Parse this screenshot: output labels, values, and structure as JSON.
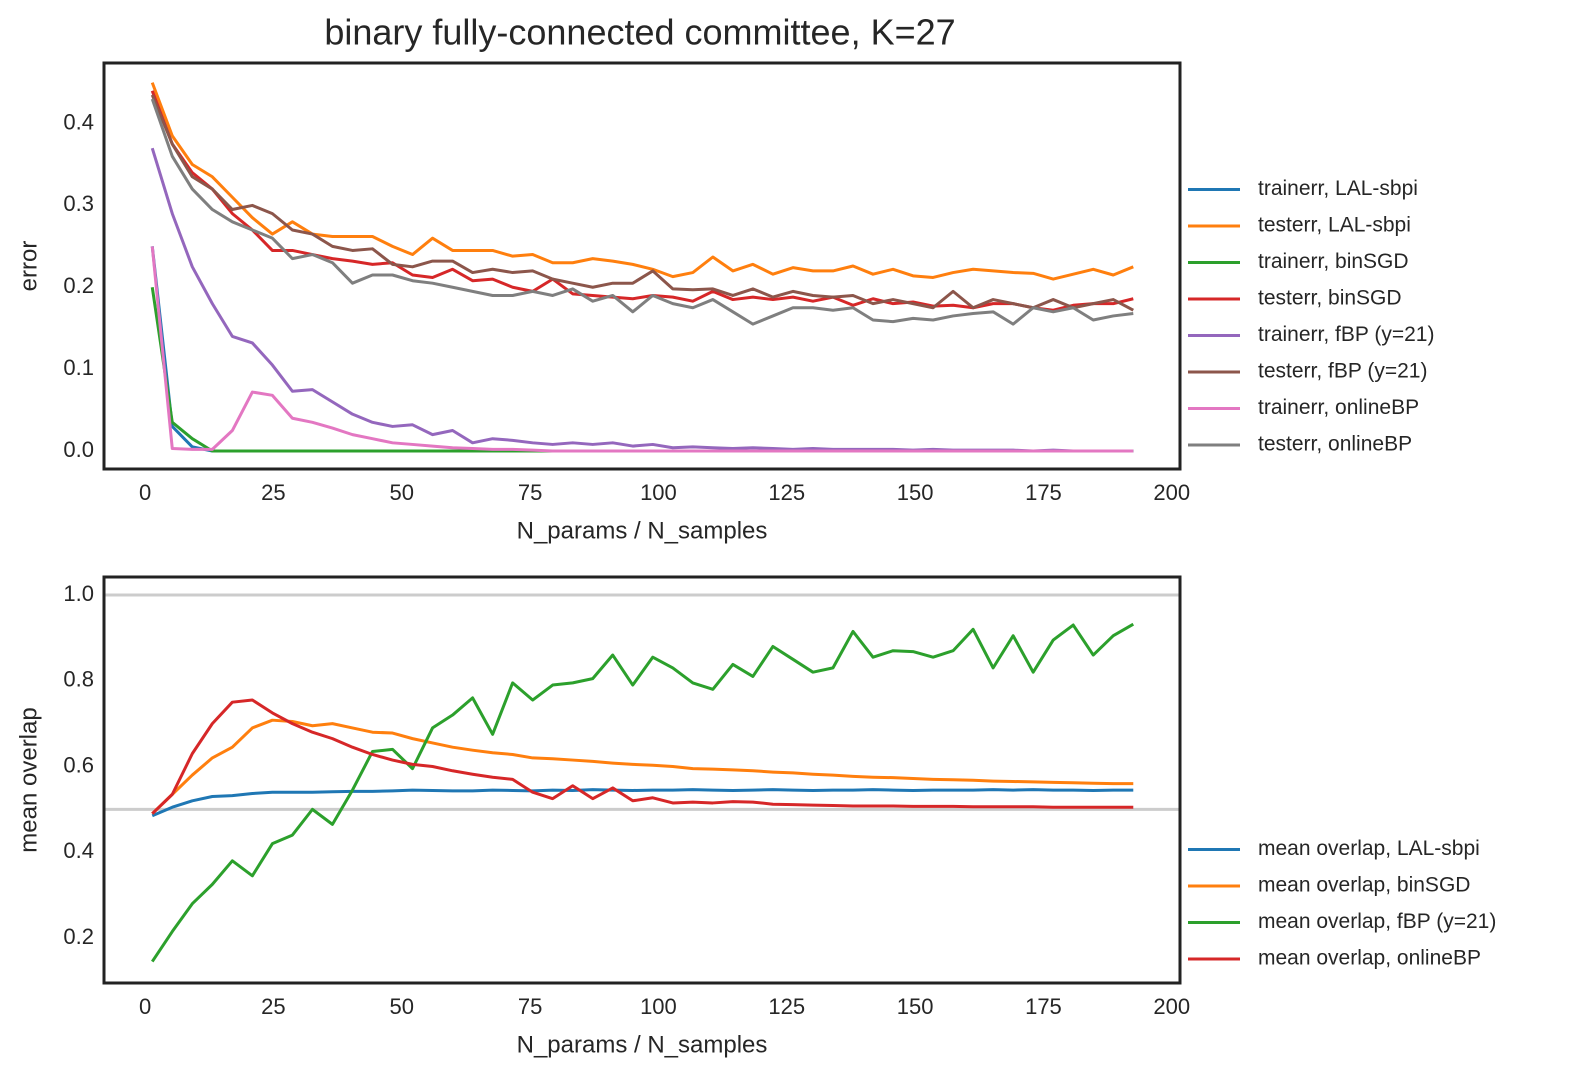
{
  "chart_data": [
    {
      "type": "line",
      "title": "binary fully-connected committee, K=27",
      "xlabel": "N_params / N_samples",
      "ylabel": "error",
      "xlim": [
        -8,
        201.6
      ],
      "ylim": [
        -0.022,
        0.474
      ],
      "xticks": [
        0,
        25,
        50,
        75,
        100,
        125,
        150,
        175,
        200
      ],
      "yticks": [
        {
          "value": 0,
          "label": "0.0"
        },
        0.1,
        0.2,
        0.3,
        0.4
      ],
      "legend": "lower right",
      "x": [
        1.4,
        5.3,
        9.2,
        13.1,
        17.0,
        20.9,
        24.8,
        28.7,
        32.6,
        36.5,
        40.4,
        44.3,
        48.2,
        52.1,
        56.0,
        59.9,
        63.8,
        67.7,
        71.6,
        75.5,
        79.4,
        83.3,
        87.2,
        91.1,
        95.0,
        98.9,
        102.8,
        106.7,
        110.6,
        114.5,
        118.4,
        122.3,
        126.2,
        130.1,
        134.0,
        137.9,
        141.8,
        145.7,
        149.6,
        153.5,
        157.4,
        161.3,
        165.2,
        169.1,
        173.0,
        176.9,
        180.8,
        184.7,
        188.6,
        192.5
      ],
      "series": [
        {
          "name": "trainerr, LAL-sbpi",
          "color": "#1f77b4",
          "values": [
            0.25,
            0.03,
            0.005,
            0,
            0,
            0,
            0,
            0,
            0,
            0,
            0,
            0,
            0,
            0,
            0,
            0,
            0,
            0,
            0,
            0,
            0,
            0,
            0,
            0,
            0,
            0,
            0,
            0,
            0,
            0,
            0,
            0,
            0,
            0,
            0,
            0,
            0,
            0,
            0,
            0,
            0,
            0,
            0,
            0,
            0,
            0,
            0,
            0,
            0,
            0
          ]
        },
        {
          "name": "testerr, LAL-sbpi",
          "color": "#ff7f0e",
          "values": [
            0.45,
            0.385,
            0.35,
            0.335,
            0.31,
            0.285,
            0.265,
            0.28,
            0.265,
            0.262,
            0.262,
            0.262,
            0.25,
            0.24,
            0.26,
            0.245,
            0.245,
            0.245,
            0.238,
            0.24,
            0.23,
            0.23,
            0.235,
            0.232,
            0.228,
            0.222,
            0.213,
            0.218,
            0.237,
            0.22,
            0.228,
            0.216,
            0.224,
            0.22,
            0.22,
            0.226,
            0.216,
            0.222,
            0.214,
            0.212,
            0.218,
            0.222,
            0.22,
            0.218,
            0.217,
            0.21,
            0.216,
            0.222,
            0.215,
            0.225
          ]
        },
        {
          "name": "trainerr, binSGD",
          "color": "#2ca02c",
          "values": [
            0.2,
            0.035,
            0.015,
            0,
            0,
            0,
            0,
            0,
            0,
            0,
            0,
            0,
            0,
            0,
            0,
            0,
            0,
            0,
            0,
            0,
            0,
            0,
            0,
            0,
            0,
            0,
            0,
            0,
            0,
            0,
            0,
            0,
            0,
            0,
            0,
            0,
            0,
            0,
            0,
            0,
            0,
            0,
            0,
            0,
            0,
            0,
            0,
            0,
            0,
            0
          ]
        },
        {
          "name": "testerr, binSGD",
          "color": "#d62728",
          "values": [
            0.44,
            0.375,
            0.34,
            0.32,
            0.29,
            0.27,
            0.245,
            0.245,
            0.24,
            0.235,
            0.232,
            0.228,
            0.23,
            0.215,
            0.212,
            0.222,
            0.208,
            0.21,
            0.2,
            0.195,
            0.21,
            0.192,
            0.19,
            0.188,
            0.186,
            0.19,
            0.188,
            0.183,
            0.195,
            0.185,
            0.188,
            0.185,
            0.188,
            0.183,
            0.188,
            0.178,
            0.186,
            0.18,
            0.182,
            0.177,
            0.178,
            0.175,
            0.18,
            0.18,
            0.175,
            0.172,
            0.178,
            0.18,
            0.18,
            0.186
          ]
        },
        {
          "name": "trainerr, fBP (y=21)",
          "color": "#9467bd",
          "values": [
            0.37,
            0.29,
            0.225,
            0.18,
            0.14,
            0.132,
            0.105,
            0.073,
            0.075,
            0.06,
            0.045,
            0.035,
            0.03,
            0.032,
            0.02,
            0.025,
            0.01,
            0.015,
            0.013,
            0.01,
            0.008,
            0.01,
            0.008,
            0.01,
            0.006,
            0.008,
            0.004,
            0.005,
            0.004,
            0.003,
            0.004,
            0.003,
            0.002,
            0.003,
            0.002,
            0.002,
            0.002,
            0.002,
            0.001,
            0.002,
            0.001,
            0.001,
            0.001,
            0.001,
            0,
            0.001,
            0,
            0,
            0,
            0
          ]
        },
        {
          "name": "testerr, fBP (y=21)",
          "color": "#8c564b",
          "values": [
            0.435,
            0.375,
            0.335,
            0.32,
            0.295,
            0.3,
            0.29,
            0.27,
            0.265,
            0.25,
            0.245,
            0.247,
            0.228,
            0.225,
            0.232,
            0.232,
            0.218,
            0.222,
            0.218,
            0.22,
            0.21,
            0.205,
            0.2,
            0.205,
            0.205,
            0.22,
            0.198,
            0.197,
            0.198,
            0.19,
            0.198,
            0.188,
            0.195,
            0.19,
            0.188,
            0.19,
            0.18,
            0.185,
            0.18,
            0.175,
            0.195,
            0.175,
            0.185,
            0.18,
            0.175,
            0.185,
            0.175,
            0.18,
            0.185,
            0.172
          ]
        },
        {
          "name": "trainerr, onlineBP",
          "color": "#e377c2",
          "values": [
            0.25,
            0.003,
            0.002,
            0.002,
            0.025,
            0.072,
            0.068,
            0.04,
            0.035,
            0.028,
            0.02,
            0.015,
            0.01,
            0.008,
            0.006,
            0.004,
            0.003,
            0.002,
            0.002,
            0.001,
            0,
            0,
            0,
            0,
            0,
            0,
            0,
            0,
            0,
            0,
            0,
            0,
            0,
            0,
            0,
            0,
            0,
            0,
            0,
            0,
            0,
            0,
            0,
            0,
            0,
            0,
            0,
            0,
            0,
            0
          ]
        },
        {
          "name": "testerr, onlineBP",
          "color": "#7f7f7f",
          "values": [
            0.43,
            0.36,
            0.32,
            0.295,
            0.28,
            0.27,
            0.26,
            0.235,
            0.24,
            0.23,
            0.205,
            0.215,
            0.215,
            0.208,
            0.205,
            0.2,
            0.195,
            0.19,
            0.19,
            0.195,
            0.19,
            0.198,
            0.183,
            0.19,
            0.17,
            0.19,
            0.18,
            0.175,
            0.185,
            0.17,
            0.155,
            0.165,
            0.175,
            0.175,
            0.172,
            0.175,
            0.16,
            0.158,
            0.162,
            0.16,
            0.165,
            0.168,
            0.17,
            0.155,
            0.175,
            0.17,
            0.175,
            0.16,
            0.165,
            0.168
          ]
        }
      ]
    },
    {
      "type": "line",
      "xlabel": "N_params / N_samples",
      "ylabel": "mean overlap",
      "xlim": [
        -8,
        201.6
      ],
      "ylim": [
        0.095,
        1.042
      ],
      "xticks": [
        0,
        25,
        50,
        75,
        100,
        125,
        150,
        175,
        200
      ],
      "yticks": [
        0.2,
        0.4,
        0.6,
        0.8,
        {
          "value": 1,
          "label": "1.0"
        }
      ],
      "hlines": [
        1,
        0.5
      ],
      "legend": "lower right",
      "x": [
        1.4,
        5.3,
        9.2,
        13.1,
        17.0,
        20.9,
        24.8,
        28.7,
        32.6,
        36.5,
        40.4,
        44.3,
        48.2,
        52.1,
        56.0,
        59.9,
        63.8,
        67.7,
        71.6,
        75.5,
        79.4,
        83.3,
        87.2,
        91.1,
        95.0,
        98.9,
        102.8,
        106.7,
        110.6,
        114.5,
        118.4,
        122.3,
        126.2,
        130.1,
        134.0,
        137.9,
        141.8,
        145.7,
        149.6,
        153.5,
        157.4,
        161.3,
        165.2,
        169.1,
        173.0,
        176.9,
        180.8,
        184.7,
        188.6,
        192.5
      ],
      "series": [
        {
          "name": "mean overlap, LAL-sbpi",
          "color": "#1f77b4",
          "values": [
            0.485,
            0.505,
            0.52,
            0.53,
            0.532,
            0.537,
            0.54,
            0.54,
            0.54,
            0.541,
            0.542,
            0.542,
            0.543,
            0.545,
            0.544,
            0.543,
            0.543,
            0.545,
            0.544,
            0.543,
            0.545,
            0.544,
            0.546,
            0.545,
            0.544,
            0.545,
            0.545,
            0.546,
            0.545,
            0.544,
            0.545,
            0.546,
            0.545,
            0.544,
            0.545,
            0.545,
            0.546,
            0.545,
            0.544,
            0.545,
            0.545,
            0.545,
            0.546,
            0.545,
            0.546,
            0.545,
            0.545,
            0.544,
            0.545,
            0.545
          ]
        },
        {
          "name": "mean overlap, binSGD",
          "color": "#ff7f0e",
          "values": [
            0.49,
            0.535,
            0.58,
            0.62,
            0.645,
            0.69,
            0.708,
            0.705,
            0.695,
            0.7,
            0.69,
            0.68,
            0.678,
            0.665,
            0.655,
            0.645,
            0.638,
            0.632,
            0.628,
            0.62,
            0.618,
            0.615,
            0.612,
            0.608,
            0.605,
            0.603,
            0.6,
            0.595,
            0.594,
            0.592,
            0.59,
            0.587,
            0.585,
            0.582,
            0.58,
            0.577,
            0.575,
            0.574,
            0.572,
            0.57,
            0.569,
            0.568,
            0.566,
            0.565,
            0.564,
            0.563,
            0.562,
            0.561,
            0.56,
            0.56
          ]
        },
        {
          "name": "mean overlap, fBP (y=21)",
          "color": "#2ca02c",
          "values": [
            0.145,
            0.215,
            0.28,
            0.325,
            0.38,
            0.345,
            0.42,
            0.44,
            0.5,
            0.465,
            0.545,
            0.635,
            0.64,
            0.595,
            0.69,
            0.72,
            0.76,
            0.675,
            0.795,
            0.755,
            0.79,
            0.795,
            0.805,
            0.86,
            0.79,
            0.855,
            0.83,
            0.795,
            0.78,
            0.838,
            0.81,
            0.88,
            0.85,
            0.82,
            0.83,
            0.915,
            0.855,
            0.87,
            0.868,
            0.855,
            0.87,
            0.92,
            0.83,
            0.905,
            0.82,
            0.895,
            0.93,
            0.86,
            0.905,
            0.932
          ]
        },
        {
          "name": "mean overlap, onlineBP",
          "color": "#d62728",
          "values": [
            0.49,
            0.535,
            0.63,
            0.7,
            0.75,
            0.755,
            0.725,
            0.7,
            0.68,
            0.665,
            0.645,
            0.628,
            0.615,
            0.605,
            0.6,
            0.59,
            0.582,
            0.575,
            0.57,
            0.54,
            0.525,
            0.555,
            0.525,
            0.55,
            0.52,
            0.527,
            0.515,
            0.517,
            0.515,
            0.518,
            0.517,
            0.512,
            0.511,
            0.51,
            0.509,
            0.508,
            0.508,
            0.508,
            0.507,
            0.507,
            0.507,
            0.506,
            0.506,
            0.506,
            0.506,
            0.505,
            0.505,
            0.505,
            0.505,
            0.505
          ]
        }
      ]
    }
  ]
}
